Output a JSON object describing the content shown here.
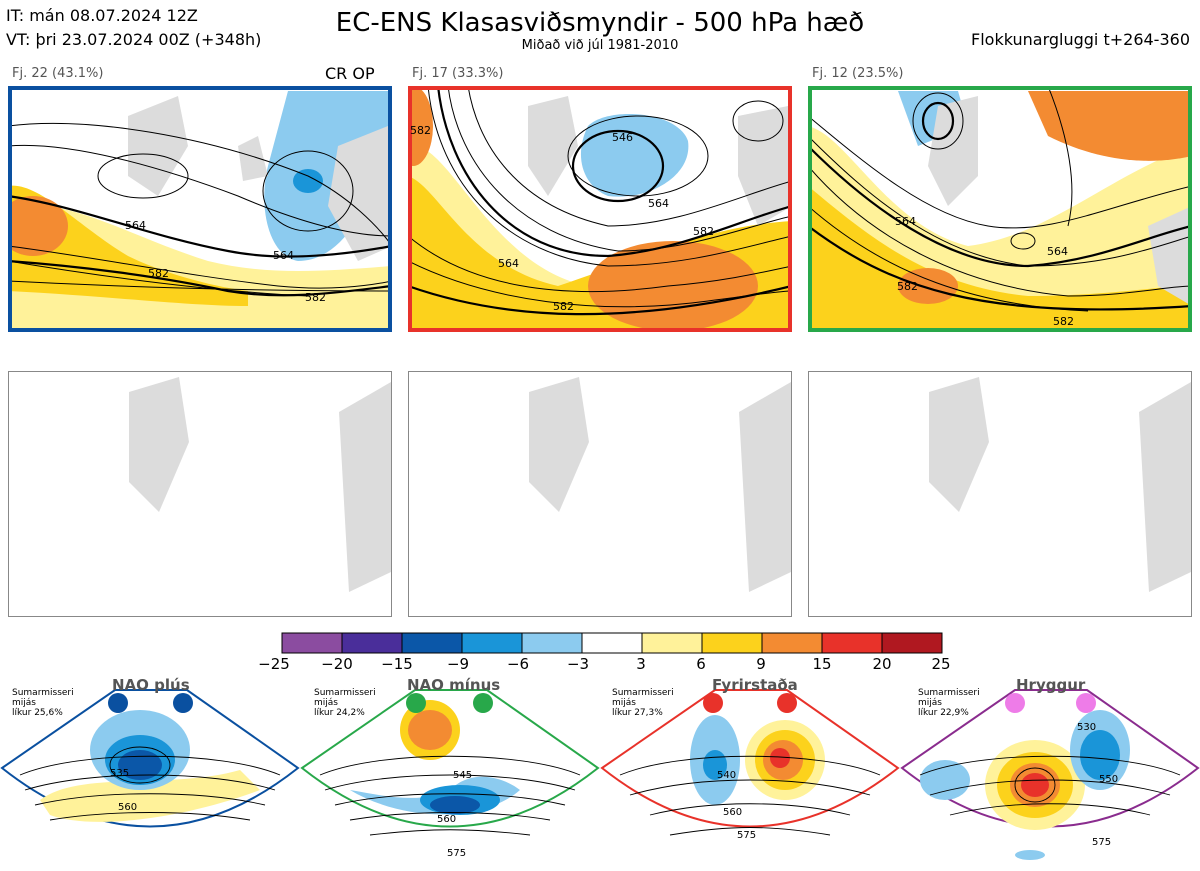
{
  "header": {
    "it": "IT: mán 08.07.2024 12Z",
    "vt": "VT: þri 23.07.2024 00Z  (+348h)",
    "title": "EC-ENS Klasasviðsmyndir - 500 hPa hæð",
    "subtitle": "Miðað við júl 1981-2010",
    "window": "Flokkunargluggi t+264-360"
  },
  "clusters": [
    {
      "label": "Fj. 22 (43.1%)",
      "border_color": "#0a50a0",
      "markers": "CR OP",
      "contours": [
        "564",
        "564",
        "582",
        "582"
      ]
    },
    {
      "label": "Fj. 17 (33.3%)",
      "border_color": "#e8322a",
      "markers": "",
      "contours": [
        "546",
        "564",
        "564",
        "582",
        "582",
        "582"
      ]
    },
    {
      "label": "Fj. 12 (23.5%)",
      "border_color": "#28a84a",
      "markers": "",
      "contours": [
        "564",
        "564",
        "582",
        "582"
      ]
    }
  ],
  "colorbar": {
    "ticks": [
      "−25",
      "−20",
      "−15",
      "−9",
      "−6",
      "−3",
      "3",
      "6",
      "9",
      "15",
      "20",
      "25"
    ],
    "colors": [
      "#8b4ca0",
      "#4a2e9a",
      "#0b57a8",
      "#1a95d8",
      "#8ccbef",
      "#ffffff",
      "#fff29a",
      "#fcd21c",
      "#f38b32",
      "#e8322a",
      "#b01820"
    ]
  },
  "regimes": [
    {
      "title": "NAO plús",
      "season": "Sumarmisseri",
      "median": "mijás",
      "prob": "líkur 25,6%",
      "color": "#0a50a0",
      "marker_color": "#0a50a0",
      "contours": [
        "535",
        "560"
      ]
    },
    {
      "title": "NAO mínus",
      "season": "Sumarmisseri",
      "median": "mijás",
      "prob": "líkur 24,2%",
      "color": "#28a84a",
      "marker_color": "#28a84a",
      "contours": [
        "545",
        "560",
        "575"
      ]
    },
    {
      "title": "Fyrirstaða",
      "season": "Sumarmisseri",
      "median": "mijás",
      "prob": "líkur 27,3%",
      "color": "#e8322a",
      "marker_color": "#e8322a",
      "contours": [
        "540",
        "560",
        "575"
      ]
    },
    {
      "title": "Hryggur",
      "season": "Sumarmisseri",
      "median": "mijás",
      "prob": "líkur 22,9%",
      "color": "#8a2c8e",
      "marker_color": "#ee7ce8",
      "contours": [
        "530",
        "550",
        "575"
      ]
    }
  ]
}
